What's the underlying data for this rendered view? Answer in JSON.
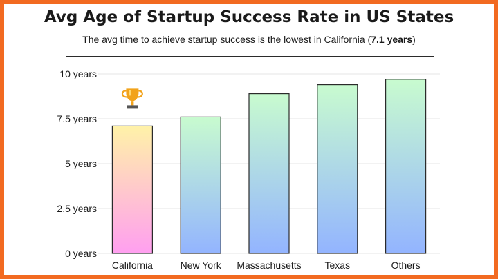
{
  "header": {
    "title": "Avg Age of Startup Success Rate in US States",
    "subtitle_prefix": "The avg time to achieve startup success is the lowest in California (",
    "subtitle_highlight": "7.1 years",
    "subtitle_suffix": ")"
  },
  "chart_data": {
    "type": "bar",
    "title": "Avg Age of Startup Success Rate in US States",
    "subtitle": "The avg time to achieve startup success is the lowest in California (7.1 years)",
    "categories": [
      "California",
      "New York",
      "Massachusetts",
      "Texas",
      "Others"
    ],
    "values": [
      7.1,
      7.6,
      8.9,
      9.4,
      9.7
    ],
    "unit": "years",
    "ylim": [
      0,
      10
    ],
    "yticks": [
      0,
      2.5,
      5,
      7.5,
      10
    ],
    "ytick_labels": [
      "0 years",
      "2.5 years",
      "5 years",
      "7.5 years",
      "10 years"
    ],
    "grid": true,
    "highlight_category": "California",
    "highlight_icon": "trophy-icon",
    "colors": {
      "highlight_top": "#fff2a8",
      "highlight_bottom": "#ff9ff0",
      "bar_top": "#c8fbcf",
      "bar_bottom": "#93b4ff",
      "bar_stroke": "#2b2b2b",
      "grid": "#e4e4e4",
      "frame": "#f26a21",
      "trophy": "#f2a31b"
    }
  }
}
